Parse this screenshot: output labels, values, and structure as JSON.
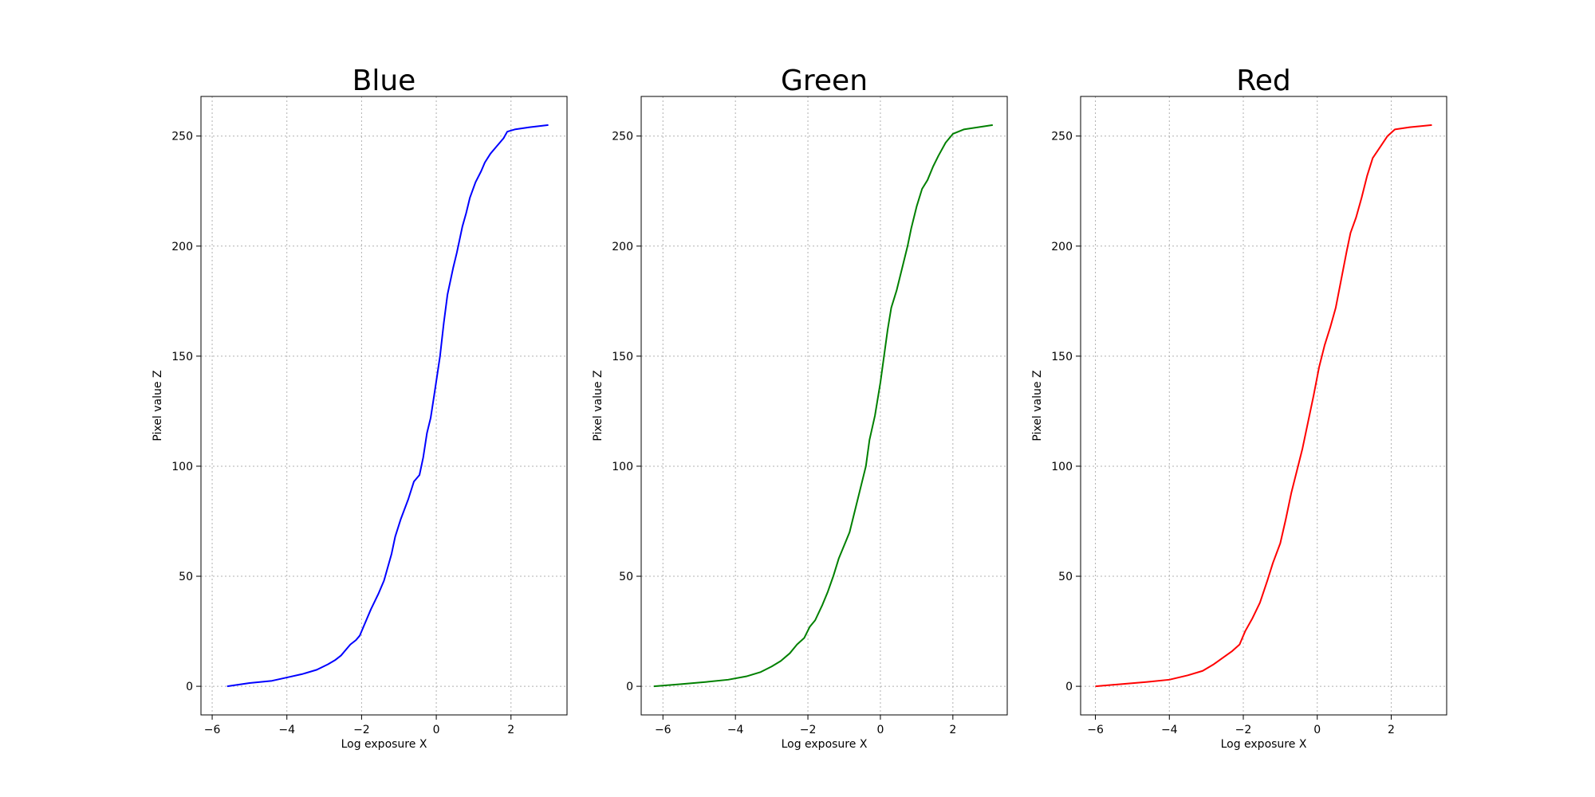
{
  "chart_data": [
    {
      "type": "line",
      "title": "Blue",
      "xlabel": "Log exposure X",
      "ylabel": "Pixel value Z",
      "xlim": [
        -6.3,
        3.5
      ],
      "ylim": [
        -13,
        268
      ],
      "xticks": [
        -6,
        -4,
        -2,
        0,
        2
      ],
      "yticks": [
        0,
        50,
        100,
        150,
        200,
        250
      ],
      "grid": true,
      "color": "#0000ff",
      "series": [
        {
          "name": "Blue",
          "x": [
            -5.6,
            -5.0,
            -4.4,
            -4.0,
            -3.6,
            -3.2,
            -2.9,
            -2.7,
            -2.55,
            -2.4,
            -2.3,
            -2.15,
            -2.05,
            -1.9,
            -1.75,
            -1.55,
            -1.4,
            -1.2,
            -1.1,
            -0.95,
            -0.75,
            -0.6,
            -0.45,
            -0.35,
            -0.25,
            -0.15,
            -0.05,
            0.1,
            0.2,
            0.3,
            0.45,
            0.55,
            0.7,
            0.8,
            0.9,
            1.05,
            1.2,
            1.3,
            1.45,
            1.6,
            1.8,
            1.9,
            2.1,
            2.5,
            3.0
          ],
          "y": [
            0,
            1.5,
            2.5,
            4,
            5.5,
            7.5,
            10,
            12,
            14,
            17,
            19,
            21,
            23,
            29,
            35,
            42,
            48,
            60,
            68,
            76,
            85,
            93,
            96,
            104,
            115,
            122,
            133,
            150,
            165,
            178,
            190,
            197,
            209,
            215,
            222,
            229,
            234,
            238,
            242,
            245,
            249,
            252,
            253,
            254,
            255
          ]
        }
      ]
    },
    {
      "type": "line",
      "title": "Green",
      "xlabel": "Log exposure X",
      "ylabel": "Pixel value Z",
      "xlim": [
        -6.6,
        3.5
      ],
      "ylim": [
        -13,
        268
      ],
      "xticks": [
        -6,
        -4,
        -2,
        0,
        2
      ],
      "yticks": [
        0,
        50,
        100,
        150,
        200,
        250
      ],
      "grid": true,
      "color": "#008000",
      "series": [
        {
          "name": "Green",
          "x": [
            -6.25,
            -5.5,
            -4.8,
            -4.2,
            -3.7,
            -3.3,
            -3.0,
            -2.75,
            -2.5,
            -2.3,
            -2.1,
            -1.95,
            -1.8,
            -1.6,
            -1.45,
            -1.3,
            -1.15,
            -1.0,
            -0.85,
            -0.7,
            -0.55,
            -0.4,
            -0.3,
            -0.15,
            0.0,
            0.1,
            0.2,
            0.3,
            0.45,
            0.6,
            0.75,
            0.85,
            1.0,
            1.15,
            1.3,
            1.45,
            1.6,
            1.8,
            2.0,
            2.3,
            3.1
          ],
          "y": [
            0,
            1,
            2,
            3,
            4.5,
            6.5,
            9,
            11.5,
            15,
            19,
            22,
            27,
            30,
            37,
            43,
            50,
            58,
            64,
            70,
            80,
            90,
            100,
            112,
            123,
            138,
            150,
            162,
            172,
            180,
            190,
            200,
            208,
            218,
            226,
            230,
            236,
            241,
            247,
            251,
            253,
            255
          ]
        }
      ]
    },
    {
      "type": "line",
      "title": "Red",
      "xlabel": "Log exposure X",
      "ylabel": "Pixel value Z",
      "xlim": [
        -6.4,
        3.5
      ],
      "ylim": [
        -13,
        268
      ],
      "xticks": [
        -6,
        -4,
        -2,
        0,
        2
      ],
      "yticks": [
        0,
        50,
        100,
        150,
        200,
        250
      ],
      "grid": true,
      "color": "#ff0000",
      "series": [
        {
          "name": "Red",
          "x": [
            -6.0,
            -5.3,
            -4.6,
            -4.0,
            -3.5,
            -3.1,
            -2.8,
            -2.55,
            -2.3,
            -2.1,
            -1.95,
            -1.75,
            -1.55,
            -1.35,
            -1.2,
            -1.0,
            -0.85,
            -0.7,
            -0.55,
            -0.4,
            -0.25,
            -0.1,
            0.05,
            0.2,
            0.35,
            0.5,
            0.65,
            0.8,
            0.9,
            1.05,
            1.2,
            1.35,
            1.5,
            1.7,
            1.9,
            2.1,
            2.5,
            3.1
          ],
          "y": [
            0,
            1,
            2,
            3,
            5,
            7,
            10,
            13,
            16,
            19,
            25,
            31,
            38,
            48,
            56,
            65,
            76,
            88,
            98,
            108,
            120,
            132,
            145,
            155,
            163,
            172,
            185,
            198,
            206,
            213,
            222,
            232,
            240,
            245,
            250,
            253,
            254,
            255
          ]
        }
      ]
    }
  ]
}
